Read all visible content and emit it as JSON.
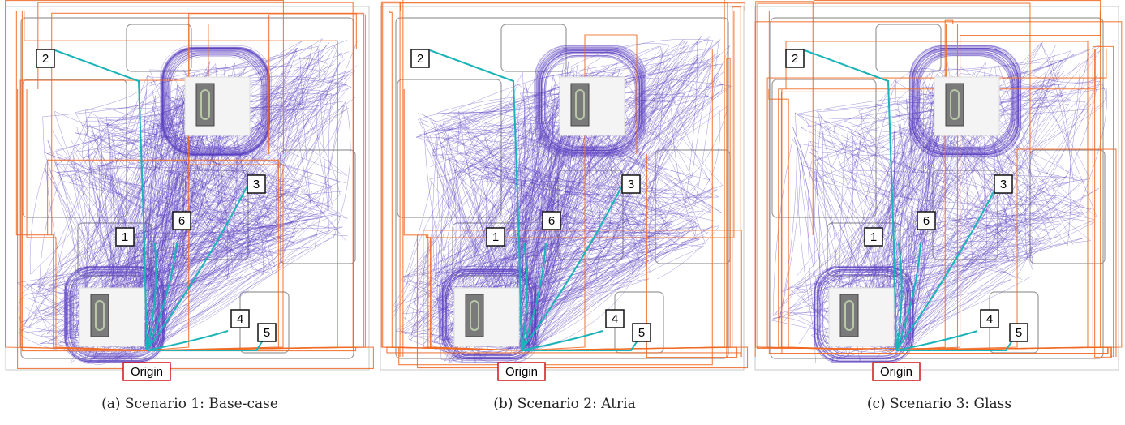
{
  "colors": {
    "floor_bg": "#ffffff",
    "walls": "#9a9a9a",
    "agent_paths": "#5a3fc0",
    "alt_paths": "#f06a23",
    "shortest_paths": "#1ab3b8",
    "origin_box": "#d0121b",
    "label_box": "#111111"
  },
  "marker_labels": [
    "1",
    "2",
    "3",
    "4",
    "5",
    "6"
  ],
  "origin_label": "Origin",
  "panels": [
    {
      "caption": "(a) Scenario 1: Base-case"
    },
    {
      "caption": "(b) Scenario 2: Atria"
    },
    {
      "caption": "(c) Scenario 3: Glass"
    }
  ]
}
